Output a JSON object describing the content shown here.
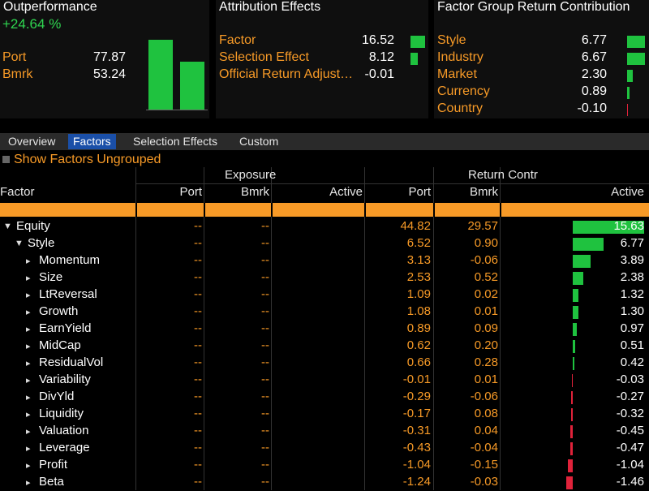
{
  "outperformance": {
    "title": "Outperformance",
    "value": "+24.64 %",
    "rows": [
      {
        "label": "Port",
        "value": "77.87"
      },
      {
        "label": "Bmrk",
        "value": "53.24"
      }
    ],
    "bars": {
      "port": 77.87,
      "bmrk": 53.24
    }
  },
  "attribution": {
    "title": "Attribution Effects",
    "rows": [
      {
        "label": "Factor",
        "value": "16.52",
        "num": 16.52
      },
      {
        "label": "Selection Effect",
        "value": "8.12",
        "num": 8.12
      },
      {
        "label": "Official Return Adjust…",
        "value": "-0.01",
        "num": -0.01
      }
    ]
  },
  "factor_group": {
    "title": "Factor Group Return Contribution",
    "rows": [
      {
        "label": "Style",
        "value": "6.77",
        "num": 6.77
      },
      {
        "label": "Industry",
        "value": "6.67",
        "num": 6.67
      },
      {
        "label": "Market",
        "value": "2.30",
        "num": 2.3
      },
      {
        "label": "Currency",
        "value": "0.89",
        "num": 0.89
      },
      {
        "label": "Country",
        "value": "-0.10",
        "num": -0.1
      }
    ]
  },
  "tabs": [
    {
      "label": "Overview",
      "active": false
    },
    {
      "label": "Factors",
      "active": true
    },
    {
      "label": "Selection Effects",
      "active": false
    },
    {
      "label": "Custom",
      "active": false
    }
  ],
  "toggle": {
    "label": "Show Factors Ungrouped"
  },
  "table": {
    "group_headers": {
      "exposure": "Exposure",
      "return_contr": "Return Contr"
    },
    "columns": {
      "factor": "Factor",
      "exp_port": "Port",
      "exp_bmrk": "Bmrk",
      "exp_active": "Active",
      "ret_port": "Port",
      "ret_bmrk": "Bmrk",
      "ret_active": "Active"
    },
    "rows": [
      {
        "name": "Equity",
        "level": 0,
        "expander": "▼",
        "exp_port": "--",
        "exp_bmrk": "--",
        "ret_port": "44.82",
        "ret_bmrk": "29.57",
        "ret_active": "15.63",
        "active_num": 15.63
      },
      {
        "name": "Style",
        "level": 1,
        "expander": "▼",
        "exp_port": "--",
        "exp_bmrk": "--",
        "ret_port": "6.52",
        "ret_bmrk": "0.90",
        "ret_active": "6.77",
        "active_num": 6.77
      },
      {
        "name": "Momentum",
        "level": 2,
        "expander": "▸",
        "exp_port": "--",
        "exp_bmrk": "--",
        "ret_port": "3.13",
        "ret_bmrk": "-0.06",
        "ret_active": "3.89",
        "active_num": 3.89
      },
      {
        "name": "Size",
        "level": 2,
        "expander": "▸",
        "exp_port": "--",
        "exp_bmrk": "--",
        "ret_port": "2.53",
        "ret_bmrk": "0.52",
        "ret_active": "2.38",
        "active_num": 2.38
      },
      {
        "name": "LtReversal",
        "level": 2,
        "expander": "▸",
        "exp_port": "--",
        "exp_bmrk": "--",
        "ret_port": "1.09",
        "ret_bmrk": "0.02",
        "ret_active": "1.32",
        "active_num": 1.32
      },
      {
        "name": "Growth",
        "level": 2,
        "expander": "▸",
        "exp_port": "--",
        "exp_bmrk": "--",
        "ret_port": "1.08",
        "ret_bmrk": "0.01",
        "ret_active": "1.30",
        "active_num": 1.3
      },
      {
        "name": "EarnYield",
        "level": 2,
        "expander": "▸",
        "exp_port": "--",
        "exp_bmrk": "--",
        "ret_port": "0.89",
        "ret_bmrk": "0.09",
        "ret_active": "0.97",
        "active_num": 0.97
      },
      {
        "name": "MidCap",
        "level": 2,
        "expander": "▸",
        "exp_port": "--",
        "exp_bmrk": "--",
        "ret_port": "0.62",
        "ret_bmrk": "0.20",
        "ret_active": "0.51",
        "active_num": 0.51
      },
      {
        "name": "ResidualVol",
        "level": 2,
        "expander": "▸",
        "exp_port": "--",
        "exp_bmrk": "--",
        "ret_port": "0.66",
        "ret_bmrk": "0.28",
        "ret_active": "0.42",
        "active_num": 0.42
      },
      {
        "name": "Variability",
        "level": 2,
        "expander": "▸",
        "exp_port": "--",
        "exp_bmrk": "--",
        "ret_port": "-0.01",
        "ret_bmrk": "0.01",
        "ret_active": "-0.03",
        "active_num": -0.03
      },
      {
        "name": "DivYld",
        "level": 2,
        "expander": "▸",
        "exp_port": "--",
        "exp_bmrk": "--",
        "ret_port": "-0.29",
        "ret_bmrk": "-0.06",
        "ret_active": "-0.27",
        "active_num": -0.27
      },
      {
        "name": "Liquidity",
        "level": 2,
        "expander": "▸",
        "exp_port": "--",
        "exp_bmrk": "--",
        "ret_port": "-0.17",
        "ret_bmrk": "0.08",
        "ret_active": "-0.32",
        "active_num": -0.32
      },
      {
        "name": "Valuation",
        "level": 2,
        "expander": "▸",
        "exp_port": "--",
        "exp_bmrk": "--",
        "ret_port": "-0.31",
        "ret_bmrk": "0.04",
        "ret_active": "-0.45",
        "active_num": -0.45
      },
      {
        "name": "Leverage",
        "level": 2,
        "expander": "▸",
        "exp_port": "--",
        "exp_bmrk": "--",
        "ret_port": "-0.43",
        "ret_bmrk": "-0.04",
        "ret_active": "-0.47",
        "active_num": -0.47
      },
      {
        "name": "Profit",
        "level": 2,
        "expander": "▸",
        "exp_port": "--",
        "exp_bmrk": "--",
        "ret_port": "-1.04",
        "ret_bmrk": "-0.15",
        "ret_active": "-1.04",
        "active_num": -1.04
      },
      {
        "name": "Beta",
        "level": 2,
        "expander": "▸",
        "exp_port": "--",
        "exp_bmrk": "--",
        "ret_port": "-1.24",
        "ret_bmrk": "-0.03",
        "ret_active": "-1.46",
        "active_num": -1.46
      }
    ]
  },
  "colors": {
    "positive": "#1fc23f",
    "negative": "#e0223a",
    "accent": "#f79a27",
    "active_tab": "#1a4fa8"
  }
}
